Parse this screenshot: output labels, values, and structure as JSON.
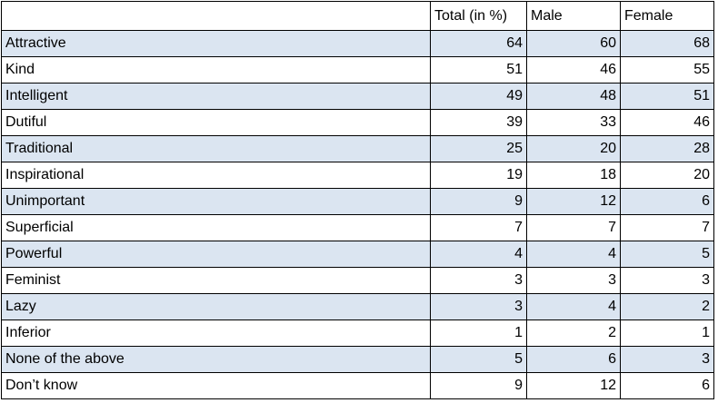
{
  "chart_data": {
    "type": "table",
    "columns": [
      "",
      "Total (in %)",
      "Male",
      "Female"
    ],
    "rows": [
      {
        "label": "Attractive",
        "total": 64,
        "male": 60,
        "female": 68
      },
      {
        "label": "Kind",
        "total": 51,
        "male": 46,
        "female": 55
      },
      {
        "label": "Intelligent",
        "total": 49,
        "male": 48,
        "female": 51
      },
      {
        "label": "Dutiful",
        "total": 39,
        "male": 33,
        "female": 46
      },
      {
        "label": "Traditional",
        "total": 25,
        "male": 20,
        "female": 28
      },
      {
        "label": "Inspirational",
        "total": 19,
        "male": 18,
        "female": 20
      },
      {
        "label": "Unimportant",
        "total": 9,
        "male": 12,
        "female": 6
      },
      {
        "label": "Superficial",
        "total": 7,
        "male": 7,
        "female": 7
      },
      {
        "label": "Powerful",
        "total": 4,
        "male": 4,
        "female": 5
      },
      {
        "label": "Feminist",
        "total": 3,
        "male": 3,
        "female": 3
      },
      {
        "label": "Lazy",
        "total": 3,
        "male": 4,
        "female": 2
      },
      {
        "label": "Inferior",
        "total": 1,
        "male": 2,
        "female": 1
      },
      {
        "label": "None of the above",
        "total": 5,
        "male": 6,
        "female": 3
      },
      {
        "label": "Don’t know",
        "total": 9,
        "male": 12,
        "female": 6
      }
    ]
  },
  "colors": {
    "shaded_row": "#dbe5f1",
    "plain_row": "#ffffff",
    "border": "#000000"
  }
}
